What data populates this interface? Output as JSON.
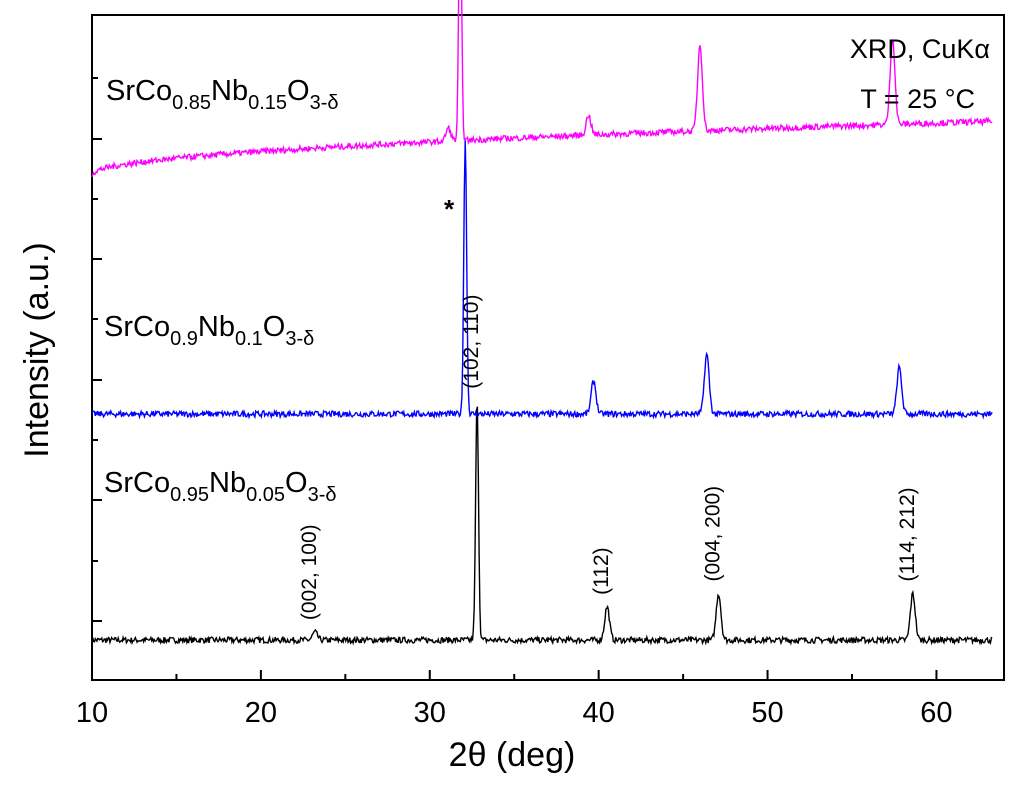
{
  "chart_data": {
    "type": "line",
    "title": "",
    "xlabel": "2θ (deg)",
    "ylabel": "Intensity (a.u.)",
    "xlim": [
      10,
      64
    ],
    "xticks": [
      "10",
      "20",
      "30",
      "40",
      "50",
      "60"
    ],
    "y_scale": "arbitrary units, curves vertically offset",
    "annotation": {
      "line1": "XRD, CuKα",
      "line2": "T = 25 °C"
    },
    "series": [
      {
        "name": "SrCo0.95Nb0.05O3-δ",
        "label": {
          "base": "SrCo",
          "s1": "0.95",
          "m": "Nb",
          "s2": "0.05",
          "m2": "O",
          "s3": "3-δ"
        },
        "color": "#000000",
        "baseline": 0.06,
        "peaks": [
          {
            "x": 23.2,
            "height": 0.012,
            "hkl": "(002, 100)"
          },
          {
            "x": 32.8,
            "height": 0.36,
            "hkl": "(102, 110)"
          },
          {
            "x": 40.5,
            "height": 0.05,
            "hkl": "(112)"
          },
          {
            "x": 47.1,
            "height": 0.07,
            "hkl": "(004, 200)"
          },
          {
            "x": 58.6,
            "height": 0.07,
            "hkl": "(114, 212)"
          }
        ]
      },
      {
        "name": "SrCo0.9Nb0.1O3-δ",
        "label": {
          "base": "SrCo",
          "s1": "0.9",
          "m": "Nb",
          "s2": "0.1",
          "m2": "O",
          "s3": "3-δ"
        },
        "color": "#0000ff",
        "baseline": 0.4,
        "peaks": [
          {
            "x": 32.1,
            "height": 0.41
          },
          {
            "x": 39.7,
            "height": 0.05
          },
          {
            "x": 46.4,
            "height": 0.09
          },
          {
            "x": 57.8,
            "height": 0.07
          }
        ]
      },
      {
        "name": "SrCo0.85Nb0.15O3-δ",
        "label": {
          "base": "SrCo",
          "s1": "0.85",
          "m": "Nb",
          "s2": "0.15",
          "m2": "O",
          "s3": "3-δ"
        },
        "color": "#ff00ff",
        "baseline_start": 0.76,
        "baseline_end": 0.84,
        "peaks": [
          {
            "x": 31.1,
            "height": 0.02,
            "marker": "*"
          },
          {
            "x": 31.8,
            "height": 0.37
          },
          {
            "x": 39.4,
            "height": 0.03
          },
          {
            "x": 46.0,
            "height": 0.13
          },
          {
            "x": 57.4,
            "height": 0.13
          }
        ]
      }
    ]
  }
}
